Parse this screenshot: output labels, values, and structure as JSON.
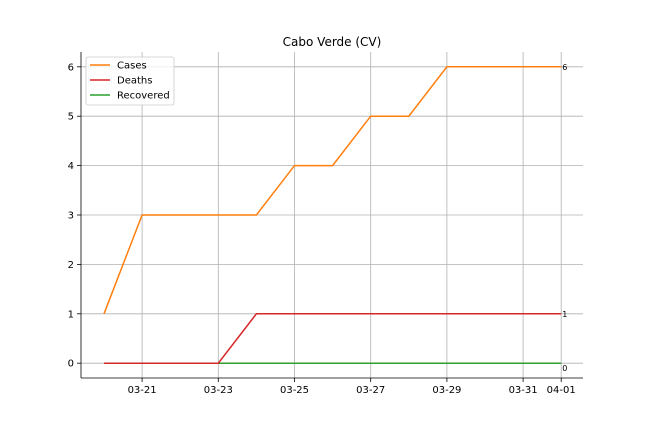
{
  "chart_data": {
    "type": "line",
    "title": "Cabo Verde (CV)",
    "xlabel": "",
    "ylabel": "",
    "x": [
      "03-20",
      "03-21",
      "03-22",
      "03-23",
      "03-24",
      "03-25",
      "03-26",
      "03-27",
      "03-28",
      "03-29",
      "03-30",
      "03-31",
      "04-01"
    ],
    "x_tick_labels": [
      "03-21",
      "03-23",
      "03-25",
      "03-27",
      "03-29",
      "03-31",
      "04-01"
    ],
    "ylim": [
      -0.3,
      6.3
    ],
    "y_ticks": [
      0,
      1,
      2,
      3,
      4,
      5,
      6
    ],
    "grid": true,
    "legend_position": "upper-left",
    "series": [
      {
        "name": "Cases",
        "color": "#ff7f0e",
        "values": [
          1,
          3,
          3,
          3,
          3,
          4,
          4,
          5,
          5,
          6,
          6,
          6,
          6
        ],
        "end_label": "6"
      },
      {
        "name": "Deaths",
        "color": "#d62728",
        "values": [
          0,
          0,
          0,
          0,
          1,
          1,
          1,
          1,
          1,
          1,
          1,
          1,
          1
        ],
        "end_label": "1"
      },
      {
        "name": "Recovered",
        "color": "#2ca02c",
        "values": [
          0,
          0,
          0,
          0,
          0,
          0,
          0,
          0,
          0,
          0,
          0,
          0,
          0
        ],
        "end_label": "0"
      }
    ]
  }
}
